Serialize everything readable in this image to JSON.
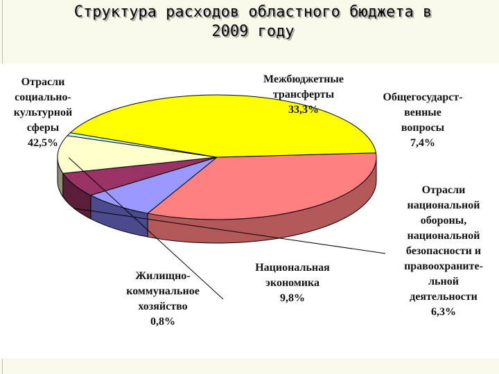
{
  "chart_data": {
    "type": "pie",
    "title_lines": [
      "Структура расходов областного бюджета в",
      "2009 году"
    ],
    "slices": [
      {
        "name": "Межбюджетные трансферты",
        "label": "Межбюджетные\nтрансферты\n33,3%",
        "value": 33.3,
        "color": "#ff8080",
        "side": "#b35959"
      },
      {
        "name": "Общегосударственные вопросы",
        "label": "Общегосударст-\nвенные\nвопросы\n7,4%",
        "value": 7.4,
        "color": "#9999ff",
        "side": "#4a4a8c"
      },
      {
        "name": "Отрасли национальной обороны, национальной безопасности и правоохранительной деятельности",
        "label": "Отрасли\nнациональной\nобороны,\nнациональной\nбезопасности и\nправоохраните-\nльной\nдеятельности\n6,3%",
        "value": 6.3,
        "color": "#993366",
        "side": "#5a1e3a"
      },
      {
        "name": "Национальная экономика",
        "label": "Национальная\nэкономика\n9,8%",
        "value": 9.8,
        "color": "#ffffcc",
        "side": "#8f8f73"
      },
      {
        "name": "Жилищно-коммунальное хозяйство",
        "label": "Жилищно-\nкоммунальное\nхозяйство\n0,8%",
        "value": 0.8,
        "color": "#ccffff",
        "side": "#708f8f"
      },
      {
        "name": "Отрасли социально-культурной сферы",
        "label": "Отрасли\nсоциально-\nкультурной\nсферы\n42,5%",
        "value": 42.5,
        "color": "#ffff00",
        "side": "#999933"
      }
    ]
  }
}
